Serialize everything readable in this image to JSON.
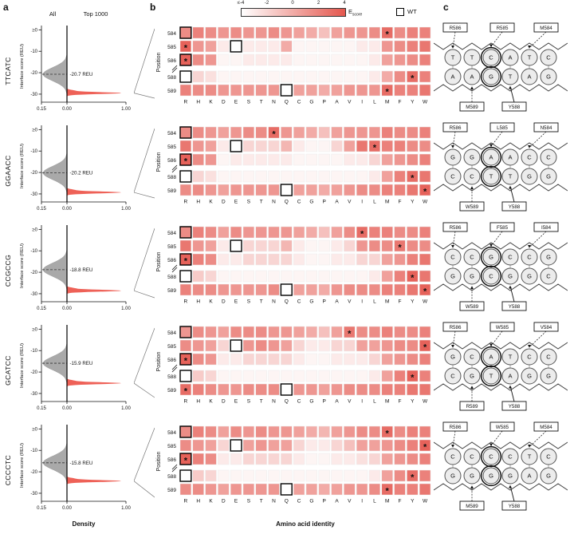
{
  "panel_labels": {
    "a": "a",
    "b": "b",
    "c": "c"
  },
  "legend": {
    "col_all": "All",
    "col_top": "Top 1000",
    "colorbar_ticks": [
      "≤-4",
      "-2",
      "0",
      "2",
      "4"
    ],
    "colorbar_label_main": "E",
    "colorbar_label_sub": "score",
    "wt_label": "WT"
  },
  "axes": {
    "ylabel": "Interface score (REU)",
    "y_ticks": [
      "≥0",
      "-10",
      "-20",
      "-30"
    ],
    "y_tick_values": [
      0,
      -10,
      -20,
      -30
    ],
    "x_ticks": [
      "0.15",
      "0.00",
      "1.00"
    ],
    "xlabel_density": "Density",
    "xlabel_aa": "Amino acid identity",
    "position_label": "Position"
  },
  "amino_acids": [
    "R",
    "H",
    "K",
    "D",
    "E",
    "S",
    "T",
    "N",
    "Q",
    "C",
    "G",
    "P",
    "A",
    "V",
    "I",
    "L",
    "M",
    "F",
    "Y",
    "W"
  ],
  "positions": [
    "584",
    "585",
    "586",
    "588",
    "589"
  ],
  "wt_columns": {
    "584": "R",
    "585": "E",
    "586": "R",
    "588": "R",
    "589": "Q"
  },
  "colors": {
    "heat_max": "#e4574e",
    "density_red": "#ee6157",
    "density_gray": "#a9a9a9"
  },
  "chart_data": [
    {
      "name": "TTCATC",
      "density": {
        "type": "violin",
        "mean_reu": -20.7,
        "annotation": "-20.7 REU",
        "top1000_peak": -29.5
      },
      "heatmap": {
        "type": "heatmap",
        "values": [
          [
            1.5,
            2,
            1.5,
            1,
            1.5,
            1,
            1,
            1.5,
            1,
            0.5,
            0,
            -1,
            0.5,
            1,
            1,
            1.5,
            3,
            1.5,
            2,
            2
          ],
          [
            3.5,
            1,
            0.5,
            -3,
            -4,
            -3,
            -3,
            -3,
            0,
            -3.5,
            -3.5,
            -3.5,
            -3.5,
            -3.5,
            -3,
            -3,
            1,
            1.5,
            2,
            2.5
          ],
          [
            3.5,
            1.5,
            1,
            -3.5,
            -3.5,
            -3,
            -3,
            -3,
            -3,
            -3.5,
            -3.5,
            -3.5,
            -3.5,
            -3.5,
            -3.5,
            -3,
            0.5,
            1,
            1.5,
            2
          ],
          [
            -4,
            -2,
            -2.5,
            -3.5,
            -3.5,
            -3.5,
            -3.5,
            -3.5,
            -3.5,
            -3.5,
            -3.5,
            -3.5,
            -3.5,
            -3.5,
            -3.5,
            -3,
            0,
            1.5,
            3,
            2
          ],
          [
            2,
            1.5,
            1.5,
            1,
            1,
            1,
            1,
            1,
            -4,
            0.5,
            0.5,
            0,
            0.5,
            1,
            1,
            1,
            3,
            2,
            2,
            2.5
          ]
        ],
        "stars": {
          "584": "M",
          "585": "R",
          "586": "R",
          "588": "Y",
          "589": "M"
        }
      },
      "dna": {
        "top": [
          "T",
          "T",
          "C",
          "A",
          "T",
          "C"
        ],
        "bottom": [
          "A",
          "A",
          "G",
          "T",
          "A",
          "G"
        ],
        "labels_top": [
          "R586",
          "R585",
          "M584"
        ],
        "labels_bottom": [
          "M589",
          "Y588"
        ],
        "highlight_top": 2,
        "highlight_bottom": 2
      }
    },
    {
      "name": "GGAACC",
      "density": {
        "type": "violin",
        "mean_reu": -20.2,
        "annotation": "-20.2 REU",
        "top1000_peak": -29.3
      },
      "heatmap": {
        "type": "heatmap",
        "values": [
          [
            1.5,
            1.5,
            1,
            0.5,
            1,
            1.5,
            1.5,
            3,
            1,
            0.5,
            0,
            -1,
            0.5,
            1,
            1,
            1,
            2,
            1.5,
            1.5,
            2
          ],
          [
            2.5,
            1,
            0.5,
            -3,
            -4,
            -2,
            -2,
            -2,
            -0.5,
            -3,
            -3.5,
            -3.5,
            -2,
            0.5,
            2.5,
            3,
            2,
            2,
            1.5,
            1.5
          ],
          [
            3.5,
            1.5,
            1,
            -3.5,
            -3,
            -3,
            -3,
            -3,
            -3,
            -3.5,
            -3.5,
            -3.5,
            -3.5,
            -3,
            -3,
            -2,
            0.5,
            1,
            1.5,
            2
          ],
          [
            -4,
            -2,
            -2.5,
            -3.5,
            -3.5,
            -3.5,
            -3.5,
            -3.5,
            -3.5,
            -3.5,
            -3.5,
            -3.5,
            -3.5,
            -3.5,
            -3.5,
            -3,
            0.5,
            2,
            3,
            2.5
          ],
          [
            1.5,
            1.5,
            1,
            0.5,
            1,
            1,
            1,
            1,
            -4,
            0.5,
            0.5,
            0,
            0.5,
            1,
            1.5,
            1.5,
            2,
            2,
            2.5,
            3.5
          ]
        ],
        "stars": {
          "584": "N",
          "585": "L",
          "586": "R",
          "588": "Y",
          "589": "W"
        }
      },
      "dna": {
        "top": [
          "G",
          "G",
          "A",
          "A",
          "C",
          "C"
        ],
        "bottom": [
          "C",
          "C",
          "T",
          "T",
          "G",
          "G"
        ],
        "labels_top": [
          "R586",
          "L585",
          "N584"
        ],
        "labels_bottom": [
          "W589",
          "Y588"
        ],
        "highlight_top": 2,
        "highlight_bottom": 2
      }
    },
    {
      "name": "CCGCCG",
      "density": {
        "type": "violin",
        "mean_reu": -18.8,
        "annotation": "-18.8 REU",
        "top1000_peak": -28.6
      },
      "heatmap": {
        "type": "heatmap",
        "values": [
          [
            1.5,
            2,
            1.5,
            0.5,
            1.5,
            1,
            1,
            1,
            1,
            0.5,
            0,
            -1,
            0.5,
            1.5,
            3,
            2,
            2,
            1.5,
            1.5,
            2
          ],
          [
            2.5,
            1,
            0.5,
            -3,
            -4,
            -2,
            -2,
            -2,
            -0.5,
            -3,
            -3.5,
            -3.5,
            -3,
            -2,
            1,
            1.5,
            1.5,
            2.5,
            1.5,
            1.5
          ],
          [
            3.5,
            2,
            1.5,
            -3,
            -3,
            -2,
            -2,
            -2,
            -2,
            -3,
            -3.5,
            -3.5,
            -3,
            -3,
            -2,
            -2,
            0.5,
            1,
            2,
            2.5
          ],
          [
            -4,
            -1.5,
            -2,
            -3.5,
            -3.5,
            -3.5,
            -3.5,
            -3.5,
            -3.5,
            -3.5,
            -3.5,
            -3.5,
            -3.5,
            -3.5,
            -3.5,
            -3,
            0.5,
            2,
            3.5,
            2.5
          ],
          [
            2,
            1.5,
            1.5,
            1,
            1,
            1,
            1,
            1.5,
            -4,
            0.5,
            0.5,
            0,
            1,
            1.5,
            1.5,
            1.5,
            2,
            2,
            2.5,
            3.5
          ]
        ],
        "stars": {
          "584": "I",
          "585": "F",
          "586": "R",
          "588": "Y",
          "589": "W"
        }
      },
      "dna": {
        "top": [
          "C",
          "C",
          "G",
          "C",
          "C",
          "G"
        ],
        "bottom": [
          "G",
          "G",
          "C",
          "G",
          "G",
          "C"
        ],
        "labels_top": [
          "R586",
          "F585",
          "I584"
        ],
        "labels_bottom": [
          "W589",
          "Y588"
        ],
        "highlight_top": 2,
        "highlight_bottom": 2
      }
    },
    {
      "name": "GCATCC",
      "density": {
        "type": "violin",
        "mean_reu": -15.9,
        "annotation": "-15.9 REU",
        "top1000_peak": -25.2
      },
      "heatmap": {
        "type": "heatmap",
        "values": [
          [
            1,
            1.5,
            1,
            0.5,
            1.5,
            1.5,
            1.5,
            1,
            1,
            0.5,
            0,
            -1,
            0.5,
            2.5,
            1.5,
            1.5,
            2,
            1.5,
            1.5,
            2
          ],
          [
            1.5,
            1,
            0.5,
            -2,
            -4,
            1,
            1.5,
            1,
            0.5,
            -2,
            -3,
            -3,
            -2,
            -2,
            0.5,
            0.5,
            1,
            1.5,
            1.5,
            3.5
          ],
          [
            3.5,
            1.5,
            1,
            -3,
            -3,
            -2,
            -2,
            -2,
            -2,
            -3,
            -3.5,
            -3.5,
            -3,
            -3,
            -3,
            -2,
            0.5,
            1,
            1.5,
            2
          ],
          [
            -4,
            -1.5,
            -2,
            -3.5,
            -3.5,
            -3.5,
            -3.5,
            -3.5,
            -3.5,
            -3.5,
            -3.5,
            -3.5,
            -3.5,
            -3.5,
            -3.5,
            -3,
            0.5,
            2,
            3.5,
            2
          ],
          [
            3,
            2,
            1.5,
            1,
            1,
            1.5,
            1.5,
            1.5,
            -4,
            1,
            1,
            0.5,
            1,
            1.5,
            1.5,
            1.5,
            2,
            2,
            2.5,
            2.5
          ]
        ],
        "stars": {
          "584": "V",
          "585": "W",
          "586": "R",
          "588": "Y",
          "589": "R"
        }
      },
      "dna": {
        "top": [
          "G",
          "C",
          "A",
          "T",
          "C",
          "C"
        ],
        "bottom": [
          "C",
          "G",
          "T",
          "A",
          "G",
          "G"
        ],
        "labels_top": [
          "R586",
          "W585",
          "V584"
        ],
        "labels_bottom": [
          "R589",
          "Y588"
        ],
        "highlight_top": 2,
        "highlight_bottom": 2
      }
    },
    {
      "name": "CCCCTC",
      "density": {
        "type": "violin",
        "mean_reu": -15.8,
        "annotation": "-15.8 REU",
        "top1000_peak": -24.3
      },
      "heatmap": {
        "type": "heatmap",
        "values": [
          [
            1.5,
            2,
            1.5,
            0.5,
            1.5,
            1,
            1.5,
            1,
            1,
            0.5,
            0,
            -0.5,
            0.5,
            1,
            1.5,
            1.5,
            3,
            1.5,
            2,
            2
          ],
          [
            1.5,
            1,
            0.5,
            -2,
            -4,
            0.5,
            1,
            0.5,
            0.5,
            -2,
            -3,
            -3,
            -2,
            -1,
            0.5,
            0.5,
            1,
            1.5,
            2,
            3.5
          ],
          [
            3.5,
            2,
            1.5,
            -3,
            -3,
            -2,
            -2,
            -2,
            -2,
            -3,
            -3.5,
            -3.5,
            -3,
            -3,
            -2.5,
            -2,
            0.5,
            1,
            1.5,
            2
          ],
          [
            -4,
            -1.5,
            -2,
            -3.5,
            -3.5,
            -3.5,
            -3.5,
            -3.5,
            -3.5,
            -3.5,
            -3.5,
            -3.5,
            -3.5,
            -3.5,
            -3.5,
            -3,
            0.5,
            1.5,
            3,
            2
          ],
          [
            1.5,
            1.5,
            1,
            0.5,
            1,
            1,
            1,
            1,
            -4,
            0.5,
            0.5,
            0,
            0.5,
            1,
            1,
            1.5,
            3,
            2,
            2,
            2.5
          ]
        ],
        "stars": {
          "584": "M",
          "585": "W",
          "586": "R",
          "588": "Y",
          "589": "M"
        }
      },
      "dna": {
        "top": [
          "C",
          "C",
          "C",
          "C",
          "T",
          "C"
        ],
        "bottom": [
          "G",
          "G",
          "G",
          "G",
          "A",
          "G"
        ],
        "labels_top": [
          "R586",
          "W585",
          "M584"
        ],
        "labels_bottom": [
          "M589",
          "Y588"
        ],
        "highlight_top": 2,
        "highlight_bottom": 2
      }
    }
  ]
}
